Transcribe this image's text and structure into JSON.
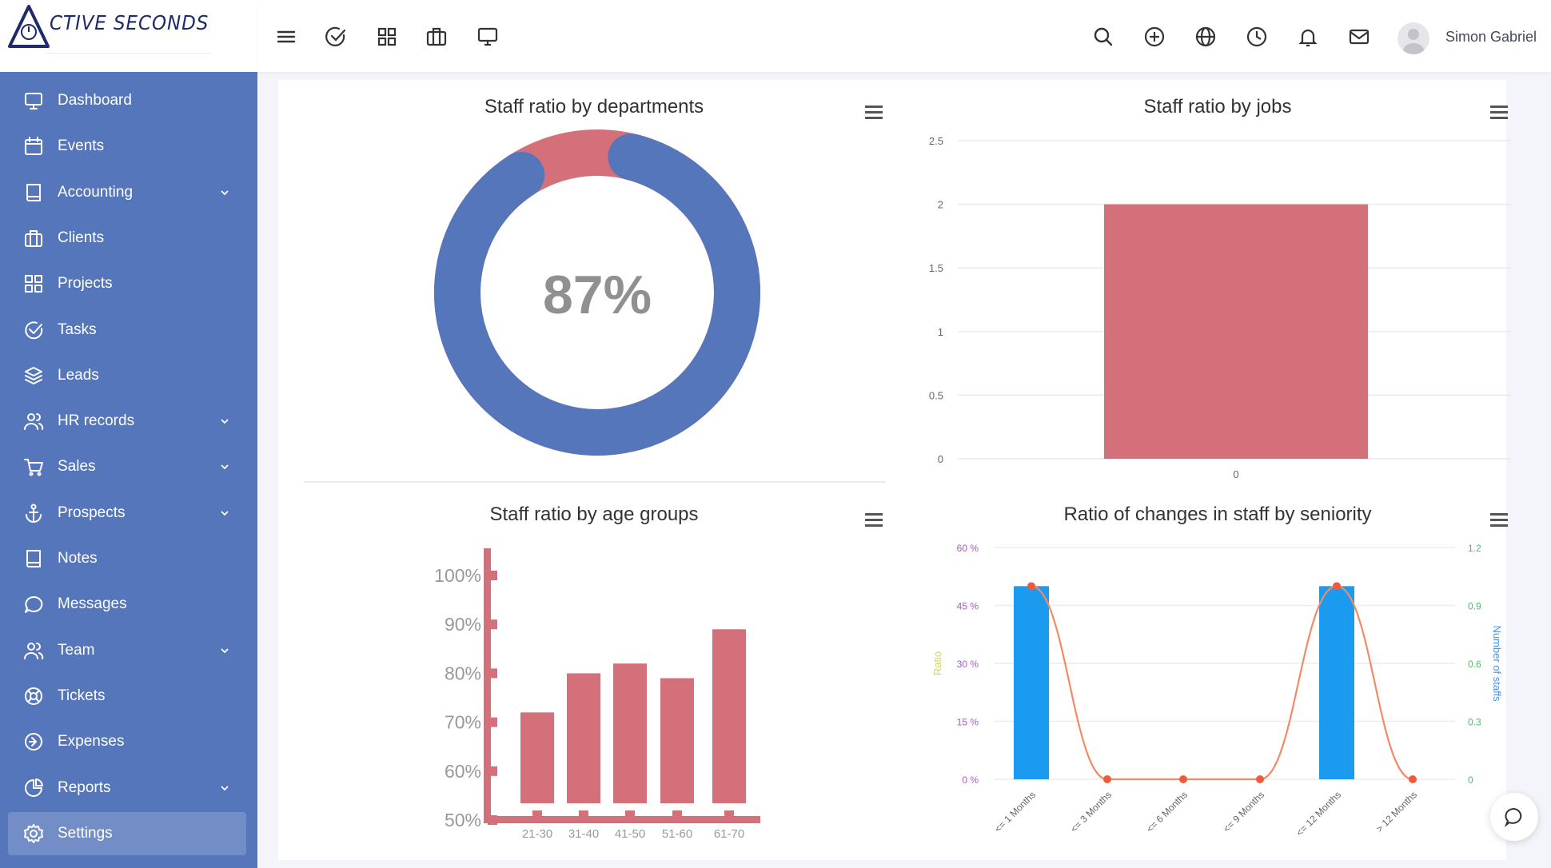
{
  "app": {
    "logo_text": "CTIVE SECONDS"
  },
  "header": {
    "user_name": "Simon Gabriel"
  },
  "sidebar": {
    "items": [
      {
        "label": "Dashboard",
        "icon": "monitor-icon",
        "chevron": false
      },
      {
        "label": "Events",
        "icon": "calendar-icon",
        "chevron": false
      },
      {
        "label": "Accounting",
        "icon": "book-icon",
        "chevron": true
      },
      {
        "label": "Clients",
        "icon": "briefcase-icon",
        "chevron": false
      },
      {
        "label": "Projects",
        "icon": "grid-icon",
        "chevron": false
      },
      {
        "label": "Tasks",
        "icon": "check-circle-icon",
        "chevron": false
      },
      {
        "label": "Leads",
        "icon": "layers-icon",
        "chevron": false
      },
      {
        "label": "HR records",
        "icon": "users-icon",
        "chevron": true
      },
      {
        "label": "Sales",
        "icon": "cart-icon",
        "chevron": true
      },
      {
        "label": "Prospects",
        "icon": "anchor-icon",
        "chevron": true
      },
      {
        "label": "Notes",
        "icon": "notebook-icon",
        "chevron": false
      },
      {
        "label": "Messages",
        "icon": "chat-icon",
        "chevron": false
      },
      {
        "label": "Team",
        "icon": "team-icon",
        "chevron": true
      },
      {
        "label": "Tickets",
        "icon": "lifebuoy-icon",
        "chevron": false
      },
      {
        "label": "Expenses",
        "icon": "arrow-circle-icon",
        "chevron": false
      },
      {
        "label": "Reports",
        "icon": "pie-icon",
        "chevron": true
      },
      {
        "label": "Settings",
        "icon": "gear-icon",
        "chevron": false,
        "active": true
      }
    ]
  },
  "colors": {
    "sidebar": "#5576bb",
    "accent_red": "#d4707a",
    "donut_blue": "#5576bb",
    "bar_blue": "#1a9bf0",
    "line_orange": "#f28a68"
  },
  "cards": {
    "departments": {
      "title": "Staff ratio by departments",
      "center_value": "87%"
    },
    "jobs": {
      "title": "Staff ratio by jobs"
    },
    "age": {
      "title": "Staff ratio by age groups"
    },
    "seniority": {
      "title": "Ratio of changes in staff by seniority"
    }
  },
  "chart_data": [
    {
      "type": "pie",
      "title": "Staff ratio by departments",
      "center_label": "87%",
      "values": [
        87,
        13
      ],
      "colors": [
        "#5576bb",
        "#d4707a"
      ]
    },
    {
      "type": "bar",
      "title": "Staff ratio by jobs",
      "categories": [
        "0"
      ],
      "values": [
        2
      ],
      "ylim": [
        0,
        2.5
      ],
      "yticks": [
        "0",
        "0.5",
        "1",
        "1.5",
        "2",
        "2.5"
      ],
      "grid": true,
      "color": "#d4707a"
    },
    {
      "type": "bar",
      "title": "Staff ratio by age groups",
      "categories": [
        "21-30",
        "31-40",
        "41-50",
        "51-60",
        "61-70"
      ],
      "values": [
        72,
        80,
        82,
        79,
        89
      ],
      "ylim": [
        50,
        100
      ],
      "yticks": [
        "50%",
        "60%",
        "70%",
        "80%",
        "90%",
        "100%"
      ],
      "color": "#d4707a"
    },
    {
      "type": "bar",
      "title": "Ratio of changes in staff by seniority",
      "categories": [
        "<= 1 Months",
        "<= 3 Months",
        "<= 6 Months",
        "<= 9 Months",
        "<= 12 Months",
        "> 12 Months"
      ],
      "series": [
        {
          "values": [
            1,
            0,
            0,
            0,
            1,
            0
          ],
          "color": "#1a9bf0",
          "axis": "right"
        },
        {
          "values": [
            50,
            0,
            0,
            0,
            50,
            0
          ],
          "color": "#f28a68",
          "axis": "left",
          "kind": "line"
        }
      ],
      "ylabel": "Ratio",
      "y2label": "Number of staffs",
      "ylim": [
        0,
        60
      ],
      "y2lim": [
        0,
        1.2
      ],
      "yticks": [
        "0 %",
        "15 %",
        "30 %",
        "45 %",
        "60 %"
      ],
      "y2ticks": [
        "0",
        "0.3",
        "0.6",
        "0.9",
        "1.2"
      ]
    }
  ]
}
